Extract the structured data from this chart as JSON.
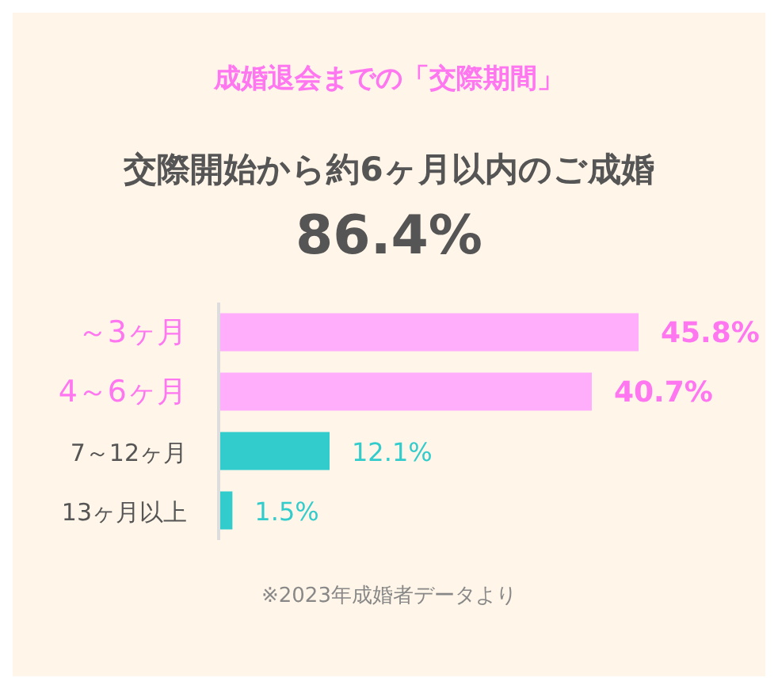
{
  "chart_data": {
    "type": "bar",
    "orientation": "horizontal",
    "title": "成婚退会までの「交際期間」",
    "subtitle": "交際開始から約6ヶ月以内のご成婚",
    "annotations": [
      "86.4%",
      "※2023年成婚者データより"
    ],
    "categories": [
      "～3ヶ月",
      "4～6ヶ月",
      "7～12ヶ月",
      "13ヶ月以上"
    ],
    "values": [
      45.8,
      40.7,
      12.1,
      1.5
    ],
    "colors": [
      "#ffaefc",
      "#ffaefc",
      "#33cccc",
      "#33cccc"
    ],
    "value_labels": [
      "45.8%",
      "40.7%",
      "12.1%",
      "1.5%"
    ]
  }
}
